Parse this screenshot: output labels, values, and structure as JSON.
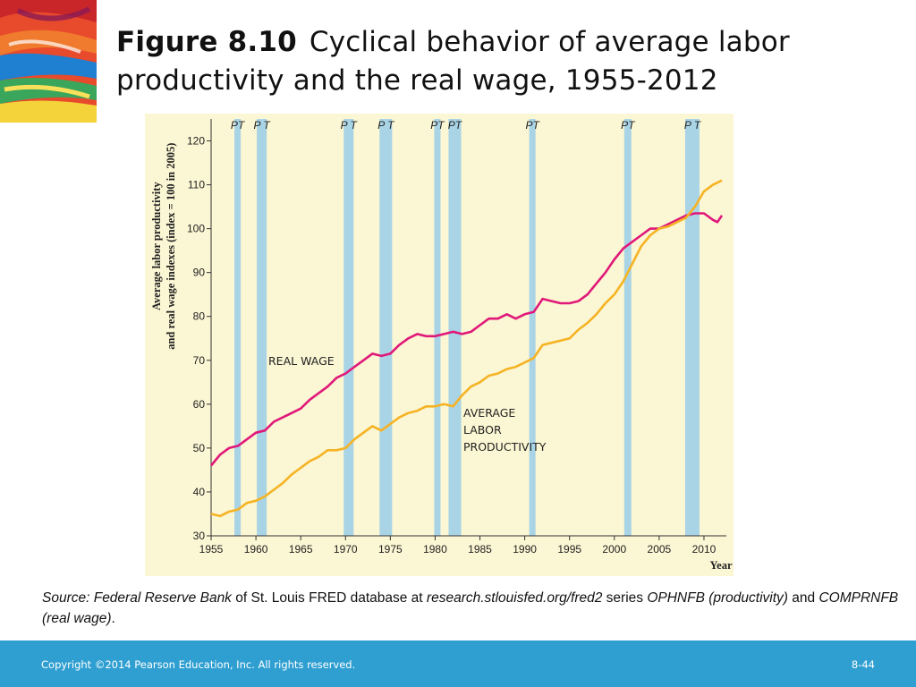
{
  "slide": {
    "title_bold": "Figure 8.10",
    "title_rest": "Cyclical behavior of average labor productivity and the real wage, 1955-2012",
    "source": {
      "part1": "Source: Federal Reserve Bank",
      "part2": " of St. Louis FRED database at ",
      "part3": "research.stlouisfed.org/fred2",
      "part4": " series ",
      "part5": "OPHNFB (productivity)",
      "part6": " and ",
      "part7": "COMPRNFB (real wage)",
      "part8": "."
    },
    "footer": {
      "copyright": "Copyright ©2014 Pearson Education, Inc. All rights reserved.",
      "page": "8-44"
    }
  },
  "chart_data": {
    "type": "line",
    "ylabel_line1": "Average labor productivity",
    "ylabel_line2": "and real wage indexes (index = 100 in 2005)",
    "xlabel": "Year",
    "xlim": [
      1955,
      2012.5
    ],
    "ylim": [
      30,
      125
    ],
    "x_ticks": [
      1955,
      1960,
      1965,
      1970,
      1975,
      1980,
      1985,
      1990,
      1995,
      2000,
      2005,
      2010
    ],
    "y_ticks": [
      30,
      40,
      50,
      60,
      70,
      80,
      90,
      100,
      110,
      120
    ],
    "colors": {
      "real_wage": "#e0187a",
      "productivity": "#f5b324",
      "recession": "#a9d4e6",
      "background": "#fbf6d3"
    },
    "recessions": [
      {
        "peak": 1957.6,
        "trough": 1958.3,
        "label": "PT"
      },
      {
        "peak": 1960.1,
        "trough": 1961.2,
        "label": "P T"
      },
      {
        "peak": 1969.8,
        "trough": 1970.9,
        "label": "P T"
      },
      {
        "peak": 1973.8,
        "trough": 1975.2,
        "label": "P T"
      },
      {
        "peak": 1979.9,
        "trough": 1980.6,
        "label": "PT"
      },
      {
        "peak": 1981.5,
        "trough": 1982.9,
        "label": "PT"
      },
      {
        "peak": 1990.5,
        "trough": 1991.2,
        "label": "PT"
      },
      {
        "peak": 2001.1,
        "trough": 2001.9,
        "label": "PT"
      },
      {
        "peak": 2007.9,
        "trough": 2009.5,
        "label": "P T"
      }
    ],
    "series": [
      {
        "name": "REAL WAGE",
        "key": "real_wage",
        "x": [
          1955,
          1956,
          1957,
          1958,
          1959,
          1960,
          1961,
          1962,
          1963,
          1964,
          1965,
          1966,
          1967,
          1968,
          1969,
          1970,
          1971,
          1972,
          1973,
          1974,
          1975,
          1976,
          1977,
          1978,
          1979,
          1980,
          1981,
          1982,
          1983,
          1984,
          1985,
          1986,
          1987,
          1988,
          1989,
          1990,
          1991,
          1992,
          1993,
          1994,
          1995,
          1996,
          1997,
          1998,
          1999,
          2000,
          2001,
          2002,
          2003,
          2004,
          2005,
          2006,
          2007,
          2008,
          2009,
          2010,
          2011,
          2011.5,
          2012
        ],
        "values": [
          46,
          48.5,
          50,
          50.5,
          52,
          53.5,
          54,
          56,
          57,
          58,
          59,
          61,
          62.5,
          64,
          66,
          67,
          68.5,
          70,
          71.5,
          71,
          71.5,
          73.5,
          75,
          76,
          75.5,
          75.5,
          76,
          76.5,
          76,
          76.5,
          78,
          79.5,
          79.5,
          80.5,
          79.5,
          80.5,
          81,
          84,
          83.5,
          83,
          83,
          83.5,
          85,
          87.5,
          90,
          93,
          95.5,
          97,
          98.5,
          100,
          100,
          101,
          102,
          103,
          103.5,
          103.5,
          102,
          101.5,
          103
        ]
      },
      {
        "name": "AVERAGE LABOR PRODUCTIVITY",
        "key": "productivity",
        "x": [
          1955,
          1956,
          1957,
          1958,
          1959,
          1960,
          1961,
          1962,
          1963,
          1964,
          1965,
          1966,
          1967,
          1968,
          1969,
          1970,
          1971,
          1972,
          1973,
          1974,
          1975,
          1976,
          1977,
          1978,
          1979,
          1980,
          1981,
          1982,
          1983,
          1984,
          1985,
          1986,
          1987,
          1988,
          1989,
          1990,
          1991,
          1992,
          1993,
          1994,
          1995,
          1996,
          1997,
          1998,
          1999,
          2000,
          2001,
          2002,
          2003,
          2004,
          2005,
          2006,
          2007,
          2008,
          2009,
          2010,
          2011,
          2012
        ],
        "values": [
          35,
          34.5,
          35.5,
          36,
          37.5,
          38,
          39,
          40.5,
          42,
          44,
          45.5,
          47,
          48,
          49.5,
          49.5,
          50,
          52,
          53.5,
          55,
          54,
          55.5,
          57,
          58,
          58.5,
          59.5,
          59.5,
          60,
          59.5,
          62,
          64,
          65,
          66.5,
          67,
          68,
          68.5,
          69.5,
          70.5,
          73.5,
          74,
          74.5,
          75,
          77,
          78.5,
          80.5,
          83,
          85,
          88,
          92,
          96,
          98.5,
          100,
          100.5,
          101.5,
          102.5,
          105,
          108.5,
          110,
          111
        ]
      }
    ],
    "annotations": {
      "real_wage": [
        "REAL WAGE"
      ],
      "productivity": [
        "AVERAGE",
        "LABOR",
        "PRODUCTIVITY"
      ]
    }
  }
}
